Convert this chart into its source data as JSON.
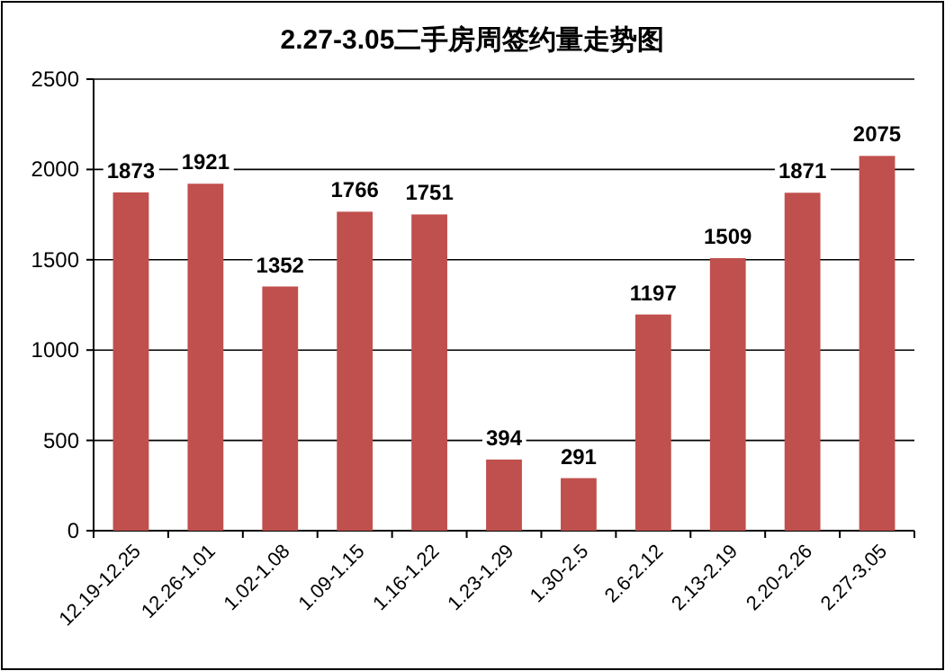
{
  "chart_data": {
    "type": "bar",
    "title": "2.27-3.05二手房周签约量走势图",
    "categories": [
      "12.19-12.25",
      "12.26-1.01",
      "1.02-1.08",
      "1.09-1.15",
      "1.16-1.22",
      "1.23-1.29",
      "1.30-2.5",
      "2.6-2.12",
      "2.13-2.19",
      "2.20-2.26",
      "2.27-3.05"
    ],
    "values": [
      1873,
      1921,
      1352,
      1766,
      1751,
      394,
      291,
      1197,
      1509,
      1871,
      2075
    ],
    "color": "#c0504d",
    "ylim": [
      0,
      2500
    ],
    "yticks": [
      0,
      500,
      1000,
      1500,
      2000,
      2500
    ],
    "grid": "y",
    "data_labels": true
  }
}
